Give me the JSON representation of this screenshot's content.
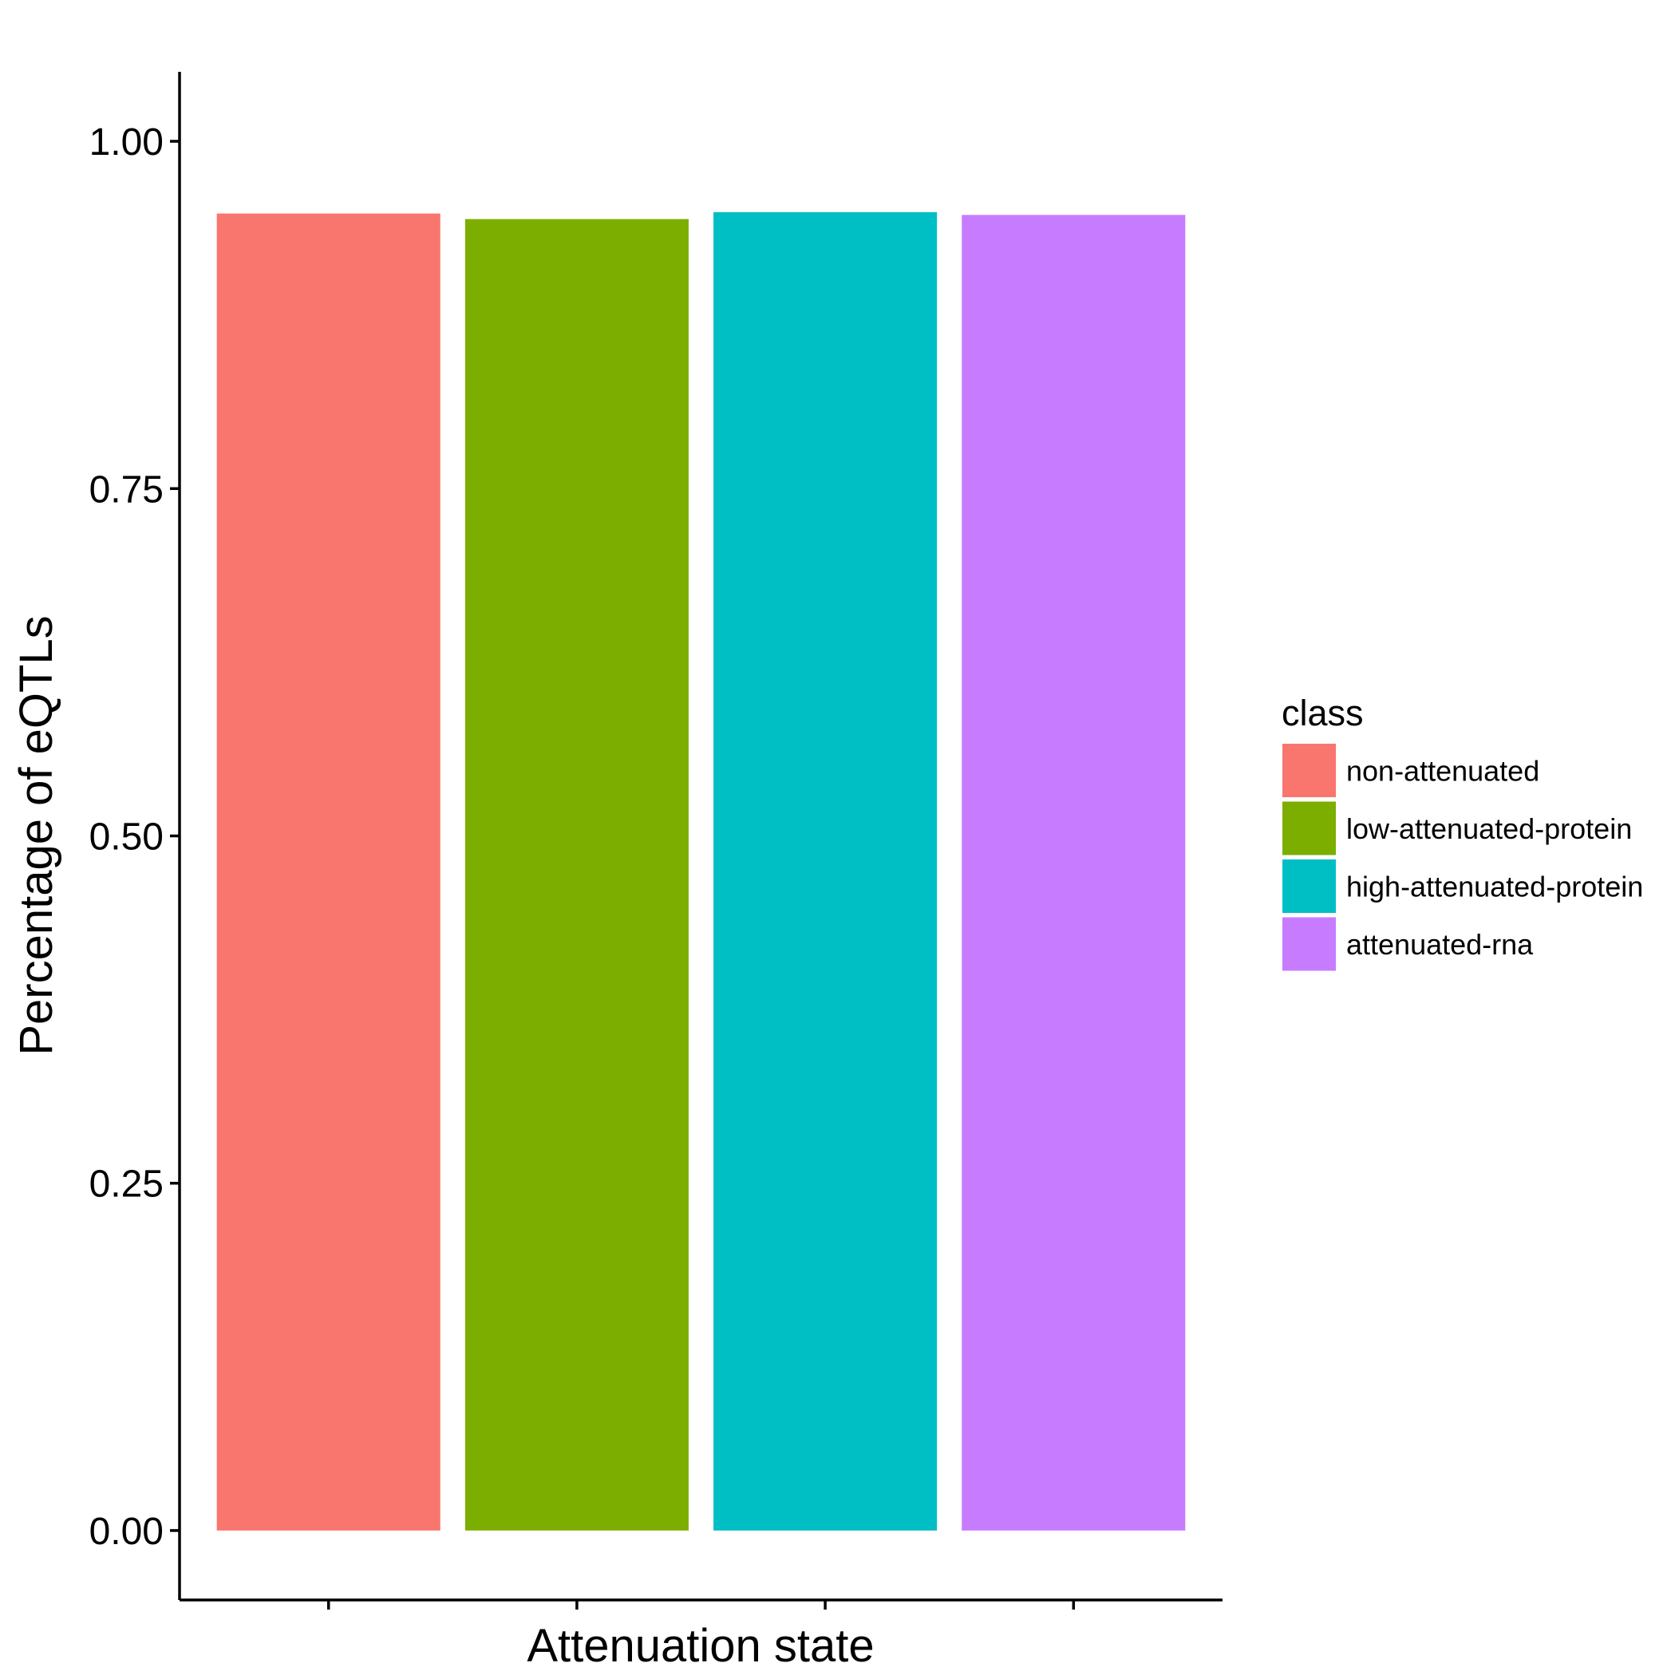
{
  "chart_data": {
    "type": "bar",
    "categories": [
      "non-attenuated",
      "low-attenuated-protein",
      "high-attenuated-protein",
      "attenuated-rna"
    ],
    "values": [
      0.948,
      0.944,
      0.949,
      0.947
    ],
    "colors": [
      "#F8766D",
      "#7CAE00",
      "#00BFC4",
      "#C77CFF"
    ],
    "xlabel": "Attenuation state",
    "ylabel": "Percentage of eQTLs",
    "ylim": [
      -0.05,
      1.05
    ],
    "yticks": [
      0,
      0.25,
      0.5,
      0.75,
      1
    ],
    "ytick_labels": [
      "0.00",
      "0.25",
      "0.50",
      "0.75",
      "1.00"
    ],
    "xtick_labels": [
      "",
      "",
      "",
      ""
    ],
    "grid": false,
    "legend": {
      "title": "class",
      "placement": "right",
      "entries": [
        "non-attenuated",
        "low-attenuated-protein",
        "high-attenuated-protein",
        "attenuated-rna"
      ]
    }
  }
}
